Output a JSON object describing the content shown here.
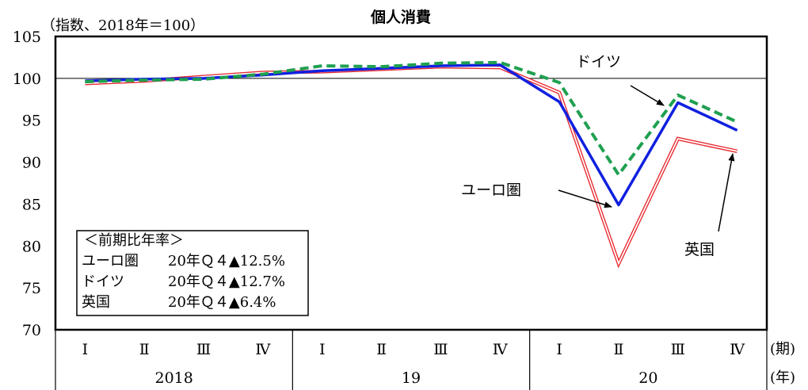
{
  "chart_data": {
    "type": "line",
    "title": "個人消費",
    "ylabel": "（指数、2018年＝100）",
    "ylim": [
      70,
      105
    ],
    "yticks": [
      70,
      75,
      80,
      85,
      90,
      95,
      100,
      105
    ],
    "reference_line": 100,
    "quarters": [
      "Ⅰ",
      "Ⅱ",
      "Ⅲ",
      "Ⅳ",
      "Ⅰ",
      "Ⅱ",
      "Ⅲ",
      "Ⅳ",
      "Ⅰ",
      "Ⅱ",
      "Ⅲ",
      "Ⅳ"
    ],
    "years": [
      "2018",
      "19",
      "20"
    ],
    "quarter_unit": "(期)",
    "year_unit": "(年)",
    "series": [
      {
        "name": "英国",
        "style": "double-red",
        "color": "#e8282e",
        "values": [
          99.4,
          99.7,
          100.2,
          100.7,
          100.8,
          101.1,
          101.4,
          101.3,
          98.3,
          77.9,
          92.8,
          91.3
        ]
      },
      {
        "name": "ユーロ圏",
        "style": "solid-blue",
        "color": "#1020e0",
        "values": [
          99.7,
          99.9,
          100.0,
          100.4,
          100.9,
          101.2,
          101.5,
          101.6,
          97.2,
          84.9,
          97.1,
          93.8
        ]
      },
      {
        "name": "ドイツ",
        "style": "dashed-green",
        "color": "#1fa050",
        "values": [
          99.6,
          99.8,
          99.9,
          100.5,
          101.5,
          101.4,
          101.8,
          101.9,
          99.5,
          88.5,
          98.0,
          94.8
        ]
      }
    ],
    "legend_box": {
      "header": "＜前期比年率＞",
      "rows": [
        {
          "name": "ユーロ圏",
          "text": "20年Ｑ４▲12.5%"
        },
        {
          "name": "ドイツ",
          "text": "20年Ｑ４▲12.7%"
        },
        {
          "name": "英国",
          "text": "20年Ｑ４▲6.4%"
        }
      ]
    }
  }
}
